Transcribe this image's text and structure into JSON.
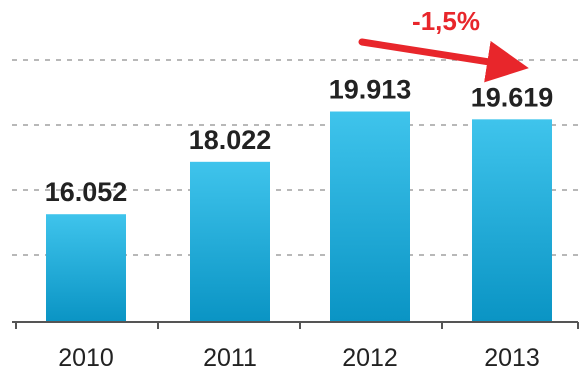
{
  "chart_data": {
    "type": "bar",
    "categories": [
      "2010",
      "2011",
      "2012",
      "2013"
    ],
    "values": [
      16052,
      18022,
      19913,
      19619
    ],
    "data_labels": [
      "16.052",
      "18.022",
      "19.913",
      "19.619"
    ],
    "annotation": {
      "text": "-1,5%",
      "from_category": "2012",
      "to_category": "2013"
    },
    "grid": true,
    "ylim": [
      12000,
      22000
    ],
    "colors": {
      "bar_top": "#3fc4ec",
      "bar_bottom": "#0a94c4",
      "grid": "#b8b8b8",
      "axis": "#555555",
      "text": "#222222",
      "annotation": "#e8262b"
    }
  }
}
